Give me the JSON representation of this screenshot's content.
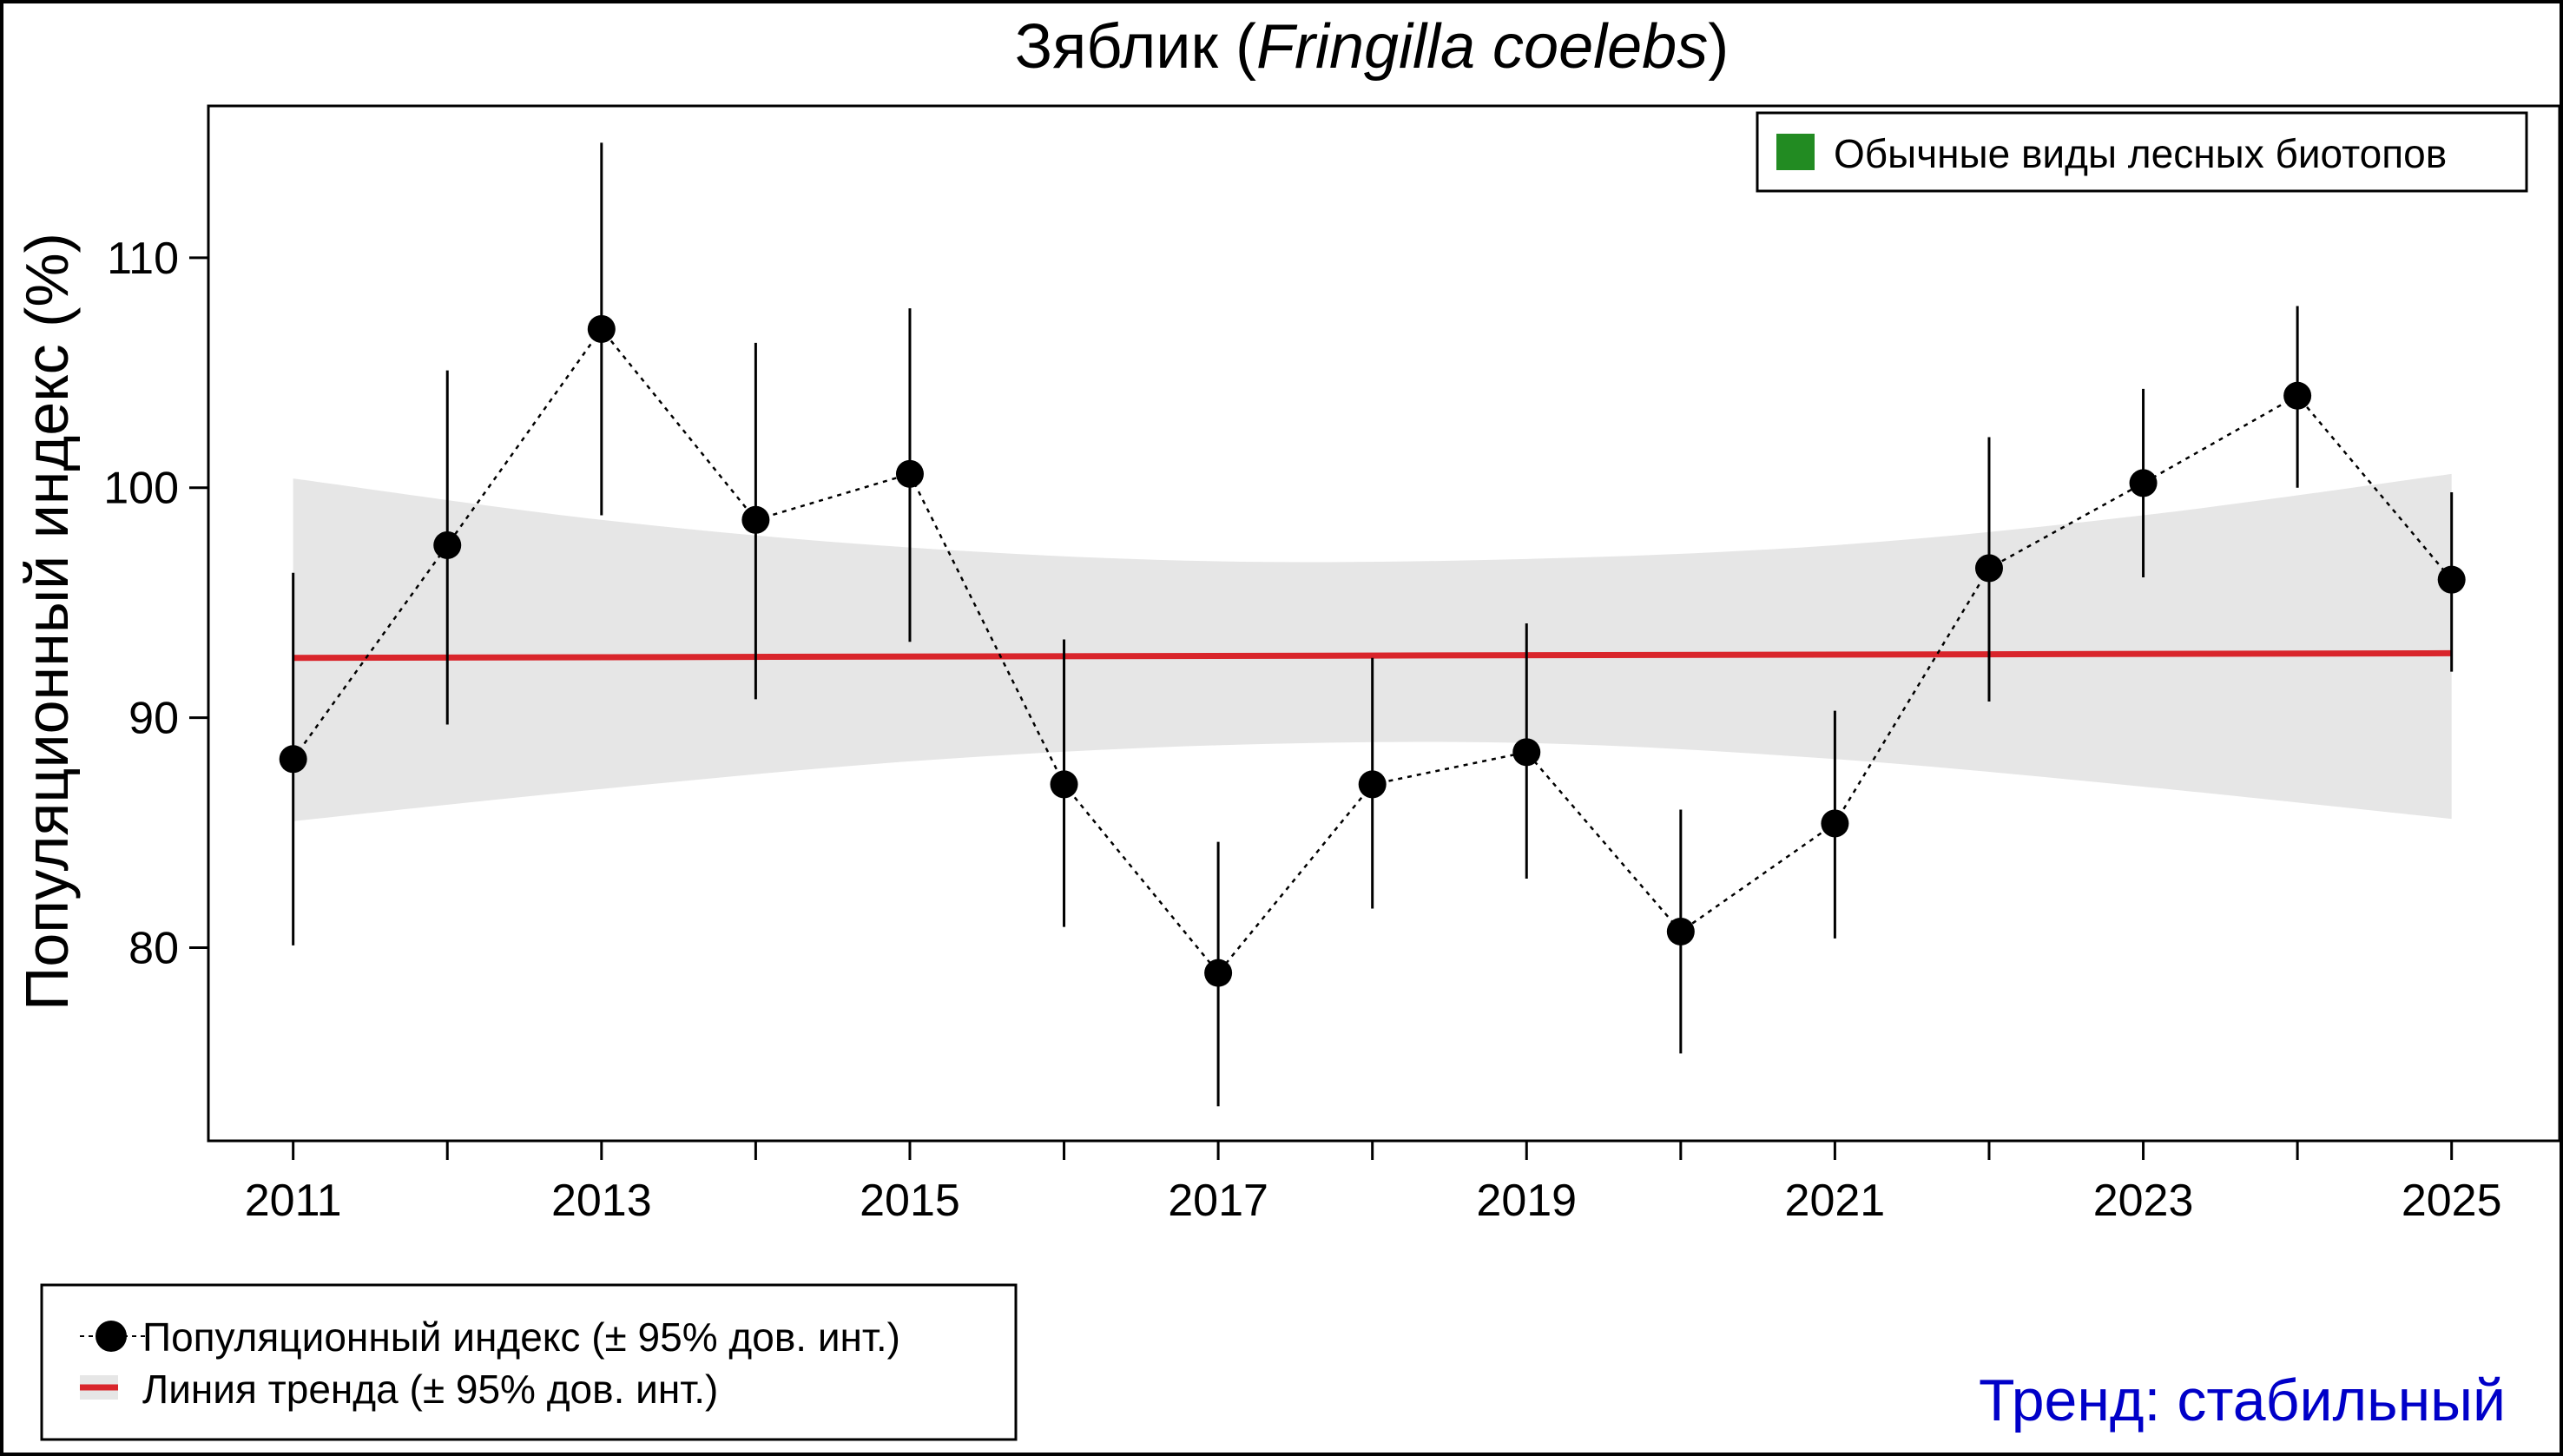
{
  "chart_data": {
    "type": "line",
    "title": {
      "prefix": "Зяблик (",
      "italic": "Fringilla coelebs",
      "suffix": ")"
    },
    "xlabel": "",
    "ylabel": "Популяционный индекс (%)",
    "xlim": [
      2010.45,
      2025.7
    ],
    "ylim": [
      71.6,
      116.6
    ],
    "x_ticks": [
      2011,
      2012,
      2013,
      2014,
      2015,
      2016,
      2017,
      2018,
      2019,
      2020,
      2021,
      2022,
      2023,
      2024,
      2025
    ],
    "x_tick_labels": [
      "2011",
      "2013",
      "2015",
      "2017",
      "2019",
      "2021",
      "2023",
      "2025"
    ],
    "y_ticks": [
      80,
      90,
      100,
      110
    ],
    "grid": false,
    "series": [
      {
        "name": "Популяционный индекс (± 95% дов. инт.)",
        "x": [
          2011,
          2012,
          2013,
          2014,
          2015,
          2016,
          2017,
          2018,
          2019,
          2020,
          2021,
          2022,
          2023,
          2024,
          2025
        ],
        "y": [
          88.2,
          97.5,
          106.9,
          98.6,
          100.6,
          87.1,
          78.9,
          87.1,
          88.5,
          80.7,
          85.4,
          96.5,
          100.2,
          104.0,
          96.0
        ],
        "ci_low": [
          80.1,
          89.7,
          98.8,
          90.8,
          93.3,
          80.9,
          73.1,
          81.7,
          83.0,
          75.4,
          80.4,
          90.7,
          96.1,
          100.0,
          92.0
        ],
        "ci_high": [
          96.3,
          105.1,
          115.0,
          106.3,
          107.8,
          93.4,
          84.6,
          92.6,
          94.1,
          86.0,
          90.3,
          102.2,
          104.3,
          107.9,
          99.8
        ],
        "color": "#000000"
      },
      {
        "name": "Линия тренда (± 95% дов. инт.)",
        "x": [
          2011,
          2025
        ],
        "y": [
          92.6,
          92.8
        ],
        "band_x": [
          2011,
          2013,
          2015,
          2017,
          2019,
          2021,
          2023,
          2025
        ],
        "band_low": [
          85.5,
          86.9,
          88.1,
          88.8,
          88.9,
          88.2,
          87.0,
          85.6
        ],
        "band_high": [
          100.4,
          98.6,
          97.4,
          96.8,
          96.9,
          97.5,
          98.8,
          100.6
        ],
        "color": "#d9252b",
        "band_color": "#e6e6e6"
      }
    ],
    "legend_top": {
      "label": "Обычные виды лесных биотопов",
      "color": "#228b22",
      "placement": "top-right"
    },
    "legend_bottom": {
      "placement": "bottom-left",
      "items": [
        "Популяционный индекс (± 95% дов. инт.)",
        "Линия тренда (± 95% дов. инт.)"
      ]
    },
    "annotation": {
      "text": "Тренд: стабильный",
      "color": "#0000c8"
    }
  }
}
